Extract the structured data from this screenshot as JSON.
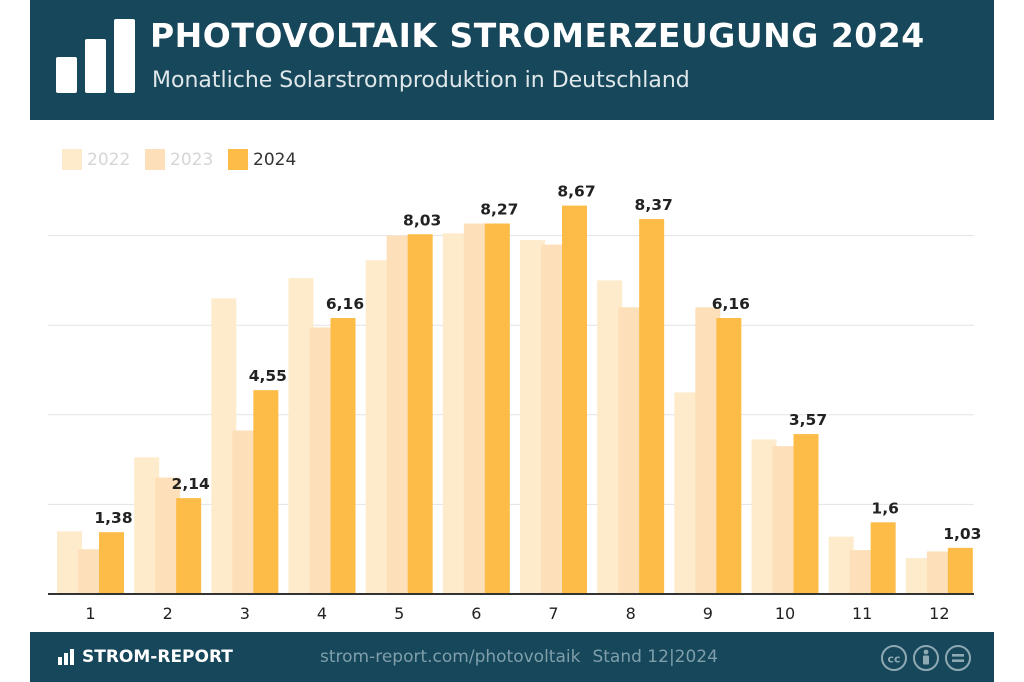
{
  "header": {
    "title": "PHOTOVOLTAIK STROMERZEUGUNG 2024",
    "subtitle": "Monatliche Solarstromproduktion in Deutschland",
    "logo_icon": "bar-chart-logo-icon"
  },
  "footer": {
    "brand": "STROM-REPORT",
    "brand_icon": "bar-chart-small-icon",
    "url": "strom-report.com/photovoltaik",
    "stand": "Stand 12|2024",
    "license_icons": [
      "cc-icon",
      "attribution-icon",
      "no-derivatives-icon"
    ]
  },
  "colors": {
    "header_bg": "#17475a",
    "series_2022": "#fdebcb",
    "series_2023": "#fde0b9",
    "series_2024": "#fdbb47",
    "label_text": "#222222"
  },
  "chart_data": {
    "type": "bar",
    "title": "PHOTOVOLTAIK STROMERZEUGUNG 2024",
    "subtitle": "Monatliche Solarstromproduktion in Deutschland",
    "xlabel": "",
    "ylabel": "",
    "ylim": [
      0,
      10
    ],
    "grid": true,
    "legend": "top-left",
    "categories": [
      "1",
      "2",
      "3",
      "4",
      "5",
      "6",
      "7",
      "8",
      "9",
      "10",
      "11",
      "12"
    ],
    "series": [
      {
        "name": "2022",
        "values": [
          1.4,
          3.05,
          6.6,
          7.05,
          7.45,
          8.05,
          7.9,
          7.0,
          4.5,
          3.45,
          1.28,
          0.8
        ]
      },
      {
        "name": "2023",
        "values": [
          1.0,
          2.6,
          3.65,
          5.95,
          8.0,
          8.27,
          7.8,
          6.4,
          6.4,
          3.3,
          0.98,
          0.95
        ]
      },
      {
        "name": "2024",
        "values": [
          1.38,
          2.14,
          4.55,
          6.16,
          8.03,
          8.27,
          8.67,
          8.37,
          6.16,
          3.57,
          1.6,
          1.03
        ],
        "labels": [
          "1,38",
          "2,14",
          "4,55",
          "6,16",
          "8,03",
          "8,27",
          "8,67",
          "8,37",
          "6,16",
          "3,57",
          "1,6",
          "1,03"
        ]
      }
    ]
  }
}
